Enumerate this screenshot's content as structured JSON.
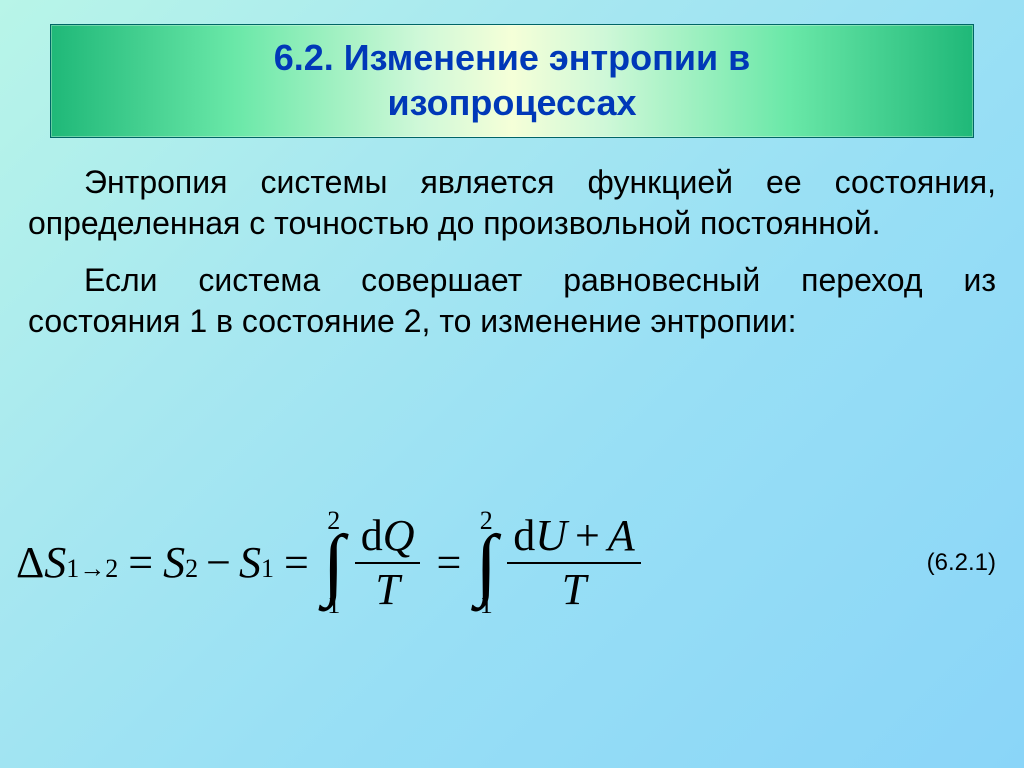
{
  "title": {
    "line1": "6.2. Изменение энтропии в",
    "line2": "изопроцессах"
  },
  "paragraphs": [
    "Энтропия системы является функцией ее состояния, определенная с точностью до произвольной постоянной.",
    "Если система совершает равновесный переход из состояния 1 в состояние 2, то изменение энтропии:"
  ],
  "formula": {
    "delta": "Δ",
    "S": "S",
    "sub12": "1→2",
    "eq": "=",
    "S2": "S",
    "sub2": "2",
    "minus": "−",
    "S1": "S",
    "sub1": "1",
    "int_lower": "1",
    "int_upper": "2",
    "d": "d",
    "Q": "Q",
    "T": "T",
    "U": "U",
    "plus": "+",
    "A": "A",
    "number": "(6.2.1)"
  },
  "style": {
    "title_color": "#0038b8",
    "title_fontsize": 36,
    "body_fontsize": 32,
    "formula_fontsize": 44,
    "bg_gradient_start": "#b8f5e8",
    "bg_gradient_end": "#8ad5f8",
    "title_bg_green": "#1fb878"
  }
}
